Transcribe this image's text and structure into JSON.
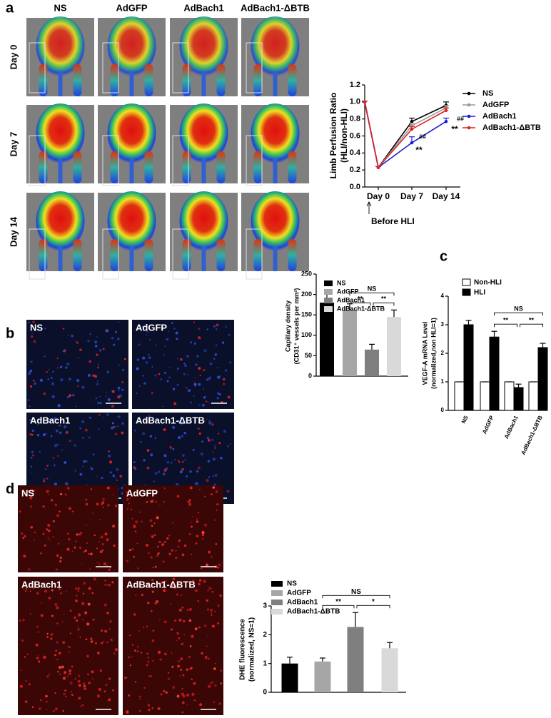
{
  "figure": {
    "panel_labels": [
      "a",
      "b",
      "c",
      "d"
    ],
    "a": {
      "columns": [
        "NS",
        "AdGFP",
        "AdBach1",
        "AdBach1-ΔBTB"
      ],
      "rows": [
        "Day 0",
        "Day 7",
        "Day 14"
      ]
    },
    "b": {
      "images": [
        "NS",
        "AdGFP",
        "AdBach1",
        "AdBach1-ΔBTB"
      ]
    },
    "d": {
      "images": [
        "NS",
        "AdGFP",
        "AdBach1",
        "AdBach1-ΔBTB"
      ]
    }
  },
  "chart_data": [
    {
      "type": "line",
      "ylabel": [
        "Limb Perfusion Ratio",
        "(HLI/non-HLI)"
      ],
      "categories": [
        null,
        "Day 0",
        "Day 7",
        "Day 14"
      ],
      "annotations": [
        "##",
        "##",
        "**",
        "**",
        "Before HLI"
      ],
      "ylim": [
        0,
        1.2
      ],
      "yticks": [
        {
          "value": 0,
          "label": "0.0"
        },
        {
          "value": 0.2,
          "label": "0.2"
        },
        {
          "value": 0.4,
          "label": "0.4"
        },
        {
          "value": 0.6,
          "label": "0.6"
        },
        {
          "value": 0.8,
          "label": "0.8"
        },
        {
          "value": 1,
          "label": "1.0"
        },
        {
          "value": 1.2,
          "label": "1.2"
        }
      ],
      "series": [
        {
          "name": "NS",
          "color": "#000000",
          "values": [
            1.0,
            0.23,
            0.77,
            0.96
          ],
          "errors": [
            0.01,
            0.01,
            0.04,
            0.04
          ]
        },
        {
          "name": "AdGFP",
          "color": "#9a9a9a",
          "values": [
            1.0,
            0.23,
            0.72,
            0.93
          ],
          "errors": [
            0.01,
            0.01,
            0.03,
            0.03
          ]
        },
        {
          "name": "AdBach1",
          "color": "#1c1cd6",
          "values": [
            1.0,
            0.23,
            0.52,
            0.77
          ],
          "errors": [
            0.01,
            0.01,
            0.07,
            0.04
          ]
        },
        {
          "name": "AdBach1-ΔBTB",
          "color": "#e02020",
          "values": [
            1.0,
            0.23,
            0.68,
            0.9
          ],
          "errors": [
            0.01,
            0.01,
            0.03,
            0.03
          ]
        }
      ]
    },
    {
      "type": "bar",
      "ylabel": [
        "Capillary density",
        "(CD31⁺ vessels per mm²)"
      ],
      "categories": [
        "NS",
        "AdGFP",
        "AdBach1",
        "AdBach1-ΔBTB"
      ],
      "values": [
        180,
        163,
        65,
        145
      ],
      "errors": [
        22,
        14,
        13,
        17
      ],
      "colors": [
        "#000000",
        "#a6a6a6",
        "#7f7f7f",
        "#d9d9d9"
      ],
      "ylim": [
        0,
        250
      ],
      "yticks": [
        0,
        50,
        100,
        150,
        200,
        250
      ],
      "annotations": [
        "NS",
        "**",
        "**"
      ]
    },
    {
      "type": "grouped-bar",
      "ylabel": [
        "VEGF-A mRNA Level",
        "(normalized,non HLI=1)"
      ],
      "categories": [
        "NS",
        "AdGFP",
        "AdBach1",
        "AdBach1-ΔBTB"
      ],
      "series": [
        {
          "name": "Non-HLI",
          "color": "#ffffff",
          "values": [
            1,
            1,
            1,
            1
          ],
          "errors": [
            0,
            0,
            0,
            0
          ]
        },
        {
          "name": "HLI",
          "color": "#000000",
          "values": [
            3.0,
            2.57,
            0.8,
            2.2
          ],
          "errors": [
            0.15,
            0.2,
            0.12,
            0.15
          ]
        }
      ],
      "ylim": [
        0,
        4
      ],
      "yticks": [
        0,
        1,
        2,
        3,
        4
      ],
      "annotations": [
        "NS",
        "**",
        "**"
      ]
    },
    {
      "type": "bar",
      "ylabel": [
        "DHE fluorescence",
        "(normalized, NS=1)"
      ],
      "categories": [
        "NS",
        "AdGFP",
        "AdBach1",
        "AdBach1-ΔBTB"
      ],
      "values": [
        1.0,
        1.07,
        2.27,
        1.53
      ],
      "errors": [
        0.22,
        0.12,
        0.5,
        0.2
      ],
      "colors": [
        "#000000",
        "#a6a6a6",
        "#7f7f7f",
        "#d9d9d9"
      ],
      "ylim": [
        0,
        3
      ],
      "yticks": [
        0,
        1,
        2,
        3
      ],
      "annotations": [
        "NS",
        "**",
        "*"
      ]
    }
  ]
}
